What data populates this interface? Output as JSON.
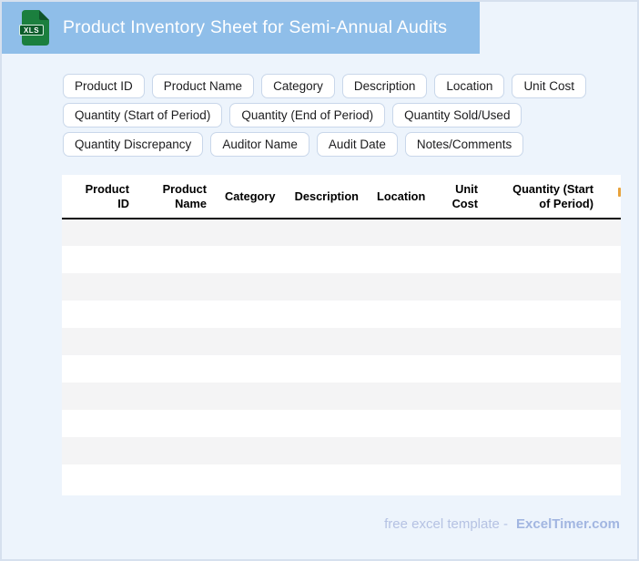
{
  "page": {
    "background": "#edf4fc",
    "border_color": "#d6e0ee"
  },
  "header": {
    "title": "Product Inventory Sheet for Semi-Annual Audits",
    "background": "#8fbee9",
    "icon": {
      "label": "XLS",
      "body_color": "#1b7f3e",
      "fold_color": "#10542a",
      "badge_color": "#0b5c2a"
    }
  },
  "chips": {
    "rows": [
      [
        "Product ID",
        "Product Name",
        "Category",
        "Description",
        "Location",
        "Unit Cost"
      ],
      [
        "Quantity (Start of Period)",
        "Quantity (End of Period)",
        "Quantity Sold/Used"
      ],
      [
        "Quantity Discrepancy",
        "Auditor Name",
        "Audit Date",
        "Notes/Comments"
      ]
    ]
  },
  "table": {
    "columns": [
      {
        "lines": [
          "Product",
          "ID"
        ]
      },
      {
        "lines": [
          "Product",
          "Name"
        ]
      },
      {
        "lines": [
          "Category"
        ]
      },
      {
        "lines": [
          "Description"
        ]
      },
      {
        "lines": [
          "Location"
        ]
      },
      {
        "lines": [
          "Unit",
          "Cost"
        ]
      },
      {
        "lines": [
          "Quantity (Start",
          "of Period)"
        ]
      },
      {
        "lines": [
          ""
        ]
      }
    ],
    "row_count": 10,
    "stripe_color": "#f4f4f5",
    "clipped_fragment_color": "#e8a23b"
  },
  "footer": {
    "prefix": "free excel template -",
    "brand": "ExcelTimer.com"
  }
}
